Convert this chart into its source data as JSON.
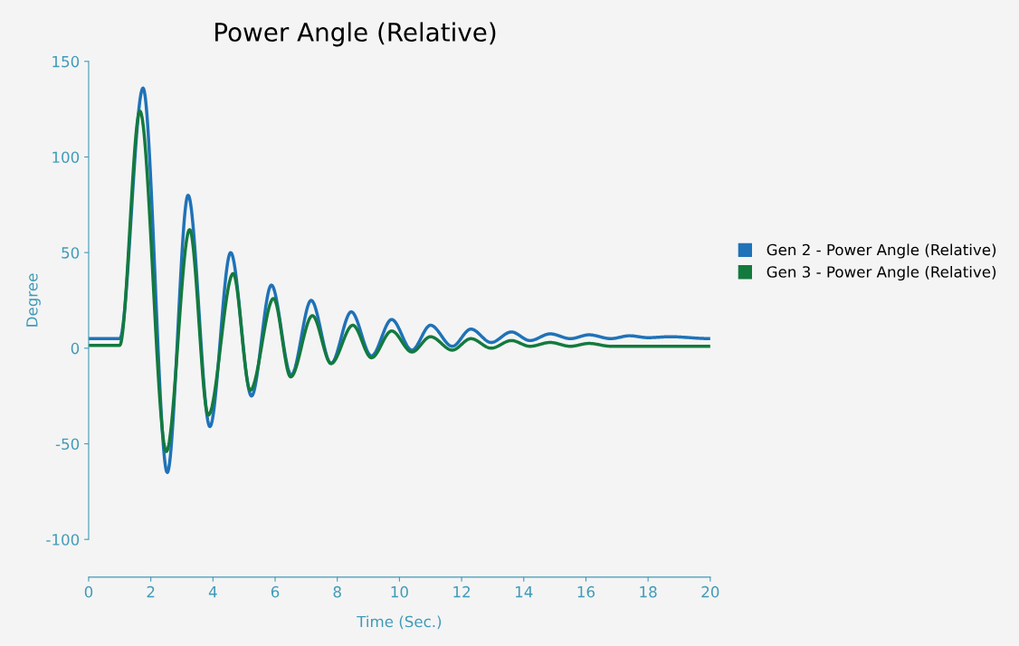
{
  "chart_data": {
    "type": "line",
    "title": "Power Angle (Relative)",
    "xlabel": "Time (Sec.)",
    "ylabel": "Degree",
    "xlim": [
      0,
      20
    ],
    "ylim": [
      -100,
      150
    ],
    "xticks": [
      0,
      2,
      4,
      6,
      8,
      10,
      12,
      14,
      16,
      18,
      20
    ],
    "yticks": [
      -100,
      -50,
      0,
      50,
      100,
      150
    ],
    "grid": false,
    "legend": "right",
    "marker": "none",
    "line_style": "solid",
    "series": [
      {
        "name": "Gen 2 - Power Angle (Relative)",
        "color": "#1f72b8",
        "x": [
          0,
          1.0,
          1.75,
          2.53,
          3.2,
          3.9,
          4.57,
          5.24,
          5.88,
          6.52,
          7.16,
          7.8,
          8.45,
          9.1,
          9.75,
          10.4,
          11.0,
          11.7,
          12.3,
          12.95,
          13.6,
          14.2,
          14.85,
          15.5,
          16.1,
          16.8,
          17.4,
          18.0,
          18.7,
          20
        ],
        "values": [
          5,
          5,
          136,
          -65,
          80,
          -41,
          50,
          -25,
          33,
          -14,
          25,
          -8,
          19,
          -4,
          15,
          -1,
          12,
          1,
          10,
          3,
          8.5,
          4,
          7.5,
          5,
          7,
          5,
          6.5,
          5.5,
          6,
          5
        ]
      },
      {
        "name": "Gen 3 - Power Angle (Relative)",
        "color": "#137a3e",
        "x": [
          0,
          1.0,
          1.65,
          2.5,
          3.25,
          3.85,
          4.65,
          5.2,
          5.95,
          6.5,
          7.2,
          7.8,
          8.5,
          9.1,
          9.75,
          10.4,
          11.0,
          11.7,
          12.3,
          12.95,
          13.6,
          14.2,
          14.85,
          15.5,
          16.1,
          16.8,
          20
        ],
        "values": [
          1.5,
          1.5,
          124,
          -54,
          62,
          -35,
          39,
          -22,
          26,
          -15,
          17,
          -8,
          12,
          -5,
          9,
          -2,
          6,
          -1,
          5,
          0,
          4,
          1,
          3,
          1,
          2.5,
          1,
          1
        ]
      }
    ]
  }
}
